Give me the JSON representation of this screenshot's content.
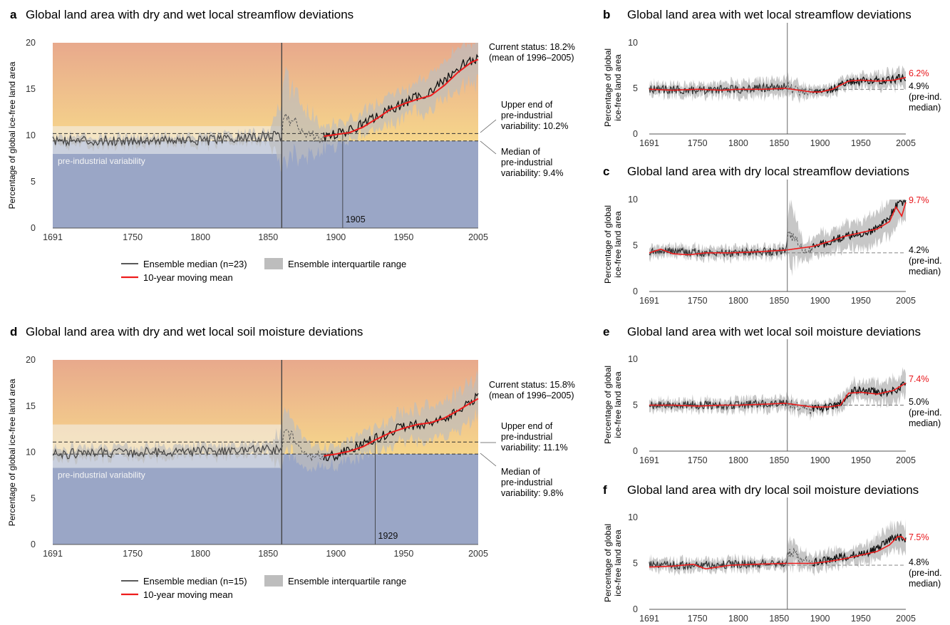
{
  "colors": {
    "warm_top": "#e8a98c",
    "warm_bottom": "#f5d58a",
    "dry_blue": "#9aa6c6",
    "band": "#efefef",
    "iqr": "#bdbdbd",
    "median_line": "#222222",
    "moving_mean": "#ee1c1c",
    "highlight_red": "#e8161b"
  },
  "legend_main": {
    "median_streamflow": "Ensemble median (n=23)",
    "median_soil": "Ensemble median (n=15)",
    "moving_mean": "10-year moving mean",
    "iqr": "Ensemble interquartile range"
  },
  "chart_data": [
    {
      "panel": "a",
      "type": "line",
      "title": "Global land area with dry and wet local streamflow deviations",
      "ylabel": "Percentage of global ice-free land area",
      "xlim": [
        1691,
        2005
      ],
      "ylim": [
        0,
        20
      ],
      "xticks": [
        "1691",
        "1750",
        "1800",
        "1850",
        "1900",
        "1950",
        "2005"
      ],
      "yticks": [
        "0",
        "5",
        "10",
        "15",
        "20"
      ],
      "split_year": 1860,
      "band_label": "pre-industrial variability",
      "preind_band": [
        8,
        11
      ],
      "dashed_upper": 10.2,
      "dashed_median": 9.4,
      "emergence_year": 1905,
      "emergence_label": "1905",
      "moving_mean_start": 1891,
      "status": [
        "Current status: 18.2%",
        "(mean of 1996–2005)"
      ],
      "upper_text": [
        "Upper end of",
        "pre-industrial",
        "variability: 10.2%"
      ],
      "median_text": [
        "Median of",
        "pre-industrial",
        "variability: 9.4%"
      ],
      "series": [
        {
          "name": "Ensemble median (n=23)",
          "x": [
            1691,
            1720,
            1760,
            1800,
            1860,
            1862,
            1880,
            1891,
            1910,
            1930,
            1950,
            1970,
            1985,
            1996,
            2005
          ],
          "y": [
            9.5,
            9.4,
            9.5,
            9.4,
            10.0,
            12.0,
            10.2,
            9.8,
            10.5,
            12.0,
            13.5,
            14.8,
            16.5,
            18.0,
            18.2
          ]
        },
        {
          "name": "10-year moving mean",
          "x": [
            1891,
            1900,
            1910,
            1920,
            1930,
            1940,
            1950,
            1960,
            1970,
            1980,
            1990,
            2000,
            2005
          ],
          "y": [
            9.9,
            10.1,
            10.3,
            10.9,
            11.8,
            12.8,
            13.4,
            13.9,
            14.3,
            15.4,
            16.8,
            17.9,
            18.2
          ]
        }
      ],
      "iqr_halfwidth": [
        [
          1691,
          0.5
        ],
        [
          1850,
          0.5
        ],
        [
          1862,
          4.5
        ],
        [
          1890,
          1.2
        ],
        [
          1950,
          1.5
        ],
        [
          2005,
          2.6
        ]
      ]
    },
    {
      "panel": "d",
      "type": "line",
      "title": "Global land area with dry and wet local soil moisture deviations",
      "ylabel": "Percentage of global ice-free land area",
      "xlim": [
        1691,
        2005
      ],
      "ylim": [
        0,
        20
      ],
      "xticks": [
        "1691",
        "1750",
        "1800",
        "1850",
        "1900",
        "1950",
        "2005"
      ],
      "yticks": [
        "0",
        "5",
        "10",
        "15",
        "20"
      ],
      "split_year": 1860,
      "band_label": "pre-industrial variability",
      "preind_band": [
        8.3,
        13
      ],
      "dashed_upper": 11.1,
      "dashed_median": 9.8,
      "emergence_year": 1929,
      "emergence_label": "1929",
      "moving_mean_start": 1891,
      "status": [
        "Current status: 15.8%",
        "(mean of 1996–2005)"
      ],
      "upper_text": [
        "Upper end of",
        "pre-industrial",
        "variability: 11.1%"
      ],
      "median_text": [
        "Median of",
        "pre-industrial",
        "variability: 9.8%"
      ],
      "series": [
        {
          "name": "Ensemble median (n=15)",
          "x": [
            1691,
            1720,
            1760,
            1800,
            1860,
            1862,
            1880,
            1891,
            1910,
            1930,
            1950,
            1970,
            1985,
            1996,
            2005
          ],
          "y": [
            9.8,
            9.9,
            10.0,
            10.1,
            10.3,
            12.5,
            9.5,
            9.3,
            10.2,
            11.5,
            12.8,
            13.2,
            14.0,
            15.0,
            16.0
          ]
        },
        {
          "name": "10-year moving mean",
          "x": [
            1891,
            1900,
            1910,
            1920,
            1930,
            1940,
            1950,
            1960,
            1970,
            1980,
            1990,
            2000,
            2005
          ],
          "y": [
            9.6,
            9.8,
            10.1,
            10.6,
            11.4,
            12.1,
            12.6,
            13.0,
            13.2,
            13.7,
            14.5,
            15.4,
            15.8
          ]
        }
      ],
      "iqr_halfwidth": [
        [
          1691,
          0.6
        ],
        [
          1850,
          0.6
        ],
        [
          1862,
          2.2
        ],
        [
          1890,
          1.0
        ],
        [
          1950,
          1.6
        ],
        [
          2005,
          2.2
        ]
      ]
    },
    {
      "panel": "b",
      "type": "line",
      "title": "Global land area with wet local streamflow deviations",
      "ylabel": [
        "Percentage of global",
        "ice-free land area"
      ],
      "xlim": [
        1691,
        2005
      ],
      "ylim": [
        0,
        10
      ],
      "xticks": [
        "1691",
        "1750",
        "1800",
        "1850",
        "1900",
        "1950",
        "2005"
      ],
      "yticks": [
        "0",
        "5",
        "10"
      ],
      "split_year": 1860,
      "dashed_median": 4.9,
      "value_label": "6.2%",
      "median_label": [
        "4.9%",
        "(pre-ind.",
        "median)"
      ],
      "series": [
        {
          "name": "median",
          "x": [
            1691,
            1750,
            1800,
            1858,
            1870,
            1890,
            1910,
            1930,
            1950,
            1970,
            1990,
            2005
          ],
          "y": [
            4.9,
            4.8,
            4.9,
            5.2,
            4.9,
            4.6,
            4.7,
            5.6,
            5.8,
            5.9,
            6.0,
            6.2
          ]
        },
        {
          "name": "10-year moving mean",
          "x": [
            1691,
            1720,
            1750,
            1780,
            1800,
            1830,
            1858,
            1890,
            1900,
            1915,
            1935,
            1950,
            1970,
            1990,
            2005
          ],
          "y": [
            4.9,
            4.8,
            4.9,
            4.8,
            4.9,
            4.9,
            5.0,
            4.6,
            4.6,
            4.9,
            5.8,
            5.9,
            5.8,
            5.9,
            6.2
          ]
        }
      ],
      "iqr_halfwidth": [
        [
          1691,
          0.6
        ],
        [
          1860,
          0.9
        ],
        [
          1900,
          0.5
        ],
        [
          2005,
          1.0
        ]
      ]
    },
    {
      "panel": "c",
      "type": "line",
      "title": "Global land area with dry local streamflow deviations",
      "ylabel": [
        "Percentage of global",
        "ice-free land area"
      ],
      "xlim": [
        1691,
        2005
      ],
      "ylim": [
        0,
        10
      ],
      "xticks": [
        "1691",
        "1750",
        "1800",
        "1850",
        "1900",
        "1950",
        "2005"
      ],
      "yticks": [
        "0",
        "5",
        "10"
      ],
      "split_year": 1860,
      "dashed_median": 4.2,
      "value_label": "9.7%",
      "median_label": [
        "4.2%",
        "(pre-ind.",
        "median)"
      ],
      "series": [
        {
          "name": "median",
          "x": [
            1691,
            1720,
            1760,
            1800,
            1858,
            1862,
            1880,
            1900,
            1930,
            1960,
            1980,
            1995,
            2005
          ],
          "y": [
            4.3,
            4.4,
            4.2,
            4.2,
            4.4,
            6.5,
            4.5,
            5.0,
            6.0,
            6.5,
            7.5,
            9.5,
            9.7
          ]
        },
        {
          "name": "10-year moving mean",
          "x": [
            1691,
            1705,
            1720,
            1740,
            1760,
            1790,
            1820,
            1858,
            1891,
            1910,
            1930,
            1950,
            1970,
            1985,
            1993,
            2000,
            2005
          ],
          "y": [
            4.2,
            4.6,
            4.1,
            4.0,
            4.2,
            4.2,
            4.3,
            4.5,
            4.9,
            5.4,
            6.0,
            6.4,
            6.8,
            7.6,
            9.2,
            8.2,
            9.7
          ]
        }
      ],
      "iqr_halfwidth": [
        [
          1691,
          0.6
        ],
        [
          1858,
          0.6
        ],
        [
          1862,
          3.5
        ],
        [
          1880,
          1.0
        ],
        [
          1950,
          1.5
        ],
        [
          2005,
          2.2
        ]
      ]
    },
    {
      "panel": "e",
      "type": "line",
      "title": "Global land area with wet local soil moisture deviations",
      "ylabel": [
        "Percentage of global",
        "ice-free land area"
      ],
      "xlim": [
        1691,
        2005
      ],
      "ylim": [
        0,
        10
      ],
      "xticks": [
        "1691",
        "1750",
        "1800",
        "1850",
        "1900",
        "1950",
        "2005"
      ],
      "yticks": [
        "0",
        "5",
        "10"
      ],
      "split_year": 1860,
      "dashed_median": 5.0,
      "value_label": "7.4%",
      "median_label": [
        "5.0%",
        "(pre-ind.",
        "median)"
      ],
      "series": [
        {
          "name": "median",
          "x": [
            1691,
            1750,
            1800,
            1858,
            1880,
            1900,
            1925,
            1940,
            1960,
            1980,
            1995,
            2005
          ],
          "y": [
            5.0,
            5.0,
            5.0,
            5.3,
            4.7,
            4.6,
            5.2,
            6.6,
            6.5,
            6.3,
            6.8,
            7.4
          ]
        },
        {
          "name": "10-year moving mean",
          "x": [
            1691,
            1720,
            1750,
            1780,
            1800,
            1830,
            1858,
            1891,
            1910,
            1925,
            1935,
            1950,
            1970,
            1990,
            2005
          ],
          "y": [
            5.0,
            5.0,
            4.9,
            5.0,
            5.0,
            5.1,
            5.2,
            4.8,
            4.8,
            5.0,
            6.3,
            6.4,
            6.2,
            6.6,
            7.4
          ]
        }
      ],
      "iqr_halfwidth": [
        [
          1691,
          0.5
        ],
        [
          1860,
          0.7
        ],
        [
          1900,
          0.6
        ],
        [
          1950,
          1.0
        ],
        [
          2005,
          1.3
        ]
      ]
    },
    {
      "panel": "f",
      "type": "line",
      "title": "Global land area with dry local soil moisture deviations",
      "ylabel": [
        "Percentage of global",
        "ice-free land area"
      ],
      "xlim": [
        1691,
        2005
      ],
      "ylim": [
        0,
        10
      ],
      "xticks": [
        "1691",
        "1750",
        "1800",
        "1850",
        "1900",
        "1950",
        "2005"
      ],
      "yticks": [
        "0",
        "5",
        "10"
      ],
      "split_year": 1860,
      "dashed_median": 4.8,
      "value_label": "7.5%",
      "median_label": [
        "4.8%",
        "(pre-ind.",
        "median)"
      ],
      "series": [
        {
          "name": "median",
          "x": [
            1691,
            1750,
            1800,
            1858,
            1862,
            1890,
            1920,
            1950,
            1970,
            1990,
            2000,
            2005
          ],
          "y": [
            4.8,
            4.8,
            4.9,
            5.1,
            6.3,
            5.0,
            5.6,
            6.0,
            6.6,
            7.8,
            7.7,
            7.5
          ]
        },
        {
          "name": "10-year moving mean",
          "x": [
            1691,
            1720,
            1745,
            1760,
            1790,
            1820,
            1858,
            1891,
            1910,
            1930,
            1950,
            1970,
            1985,
            1995,
            2000,
            2005
          ],
          "y": [
            4.6,
            4.7,
            4.9,
            4.4,
            4.8,
            4.9,
            5.0,
            5.0,
            5.2,
            5.5,
            5.9,
            6.3,
            7.0,
            7.9,
            7.9,
            7.5
          ]
        }
      ],
      "iqr_halfwidth": [
        [
          1691,
          0.6
        ],
        [
          1858,
          0.6
        ],
        [
          1862,
          1.6
        ],
        [
          1880,
          0.8
        ],
        [
          1950,
          1.0
        ],
        [
          2005,
          1.6
        ]
      ]
    }
  ]
}
